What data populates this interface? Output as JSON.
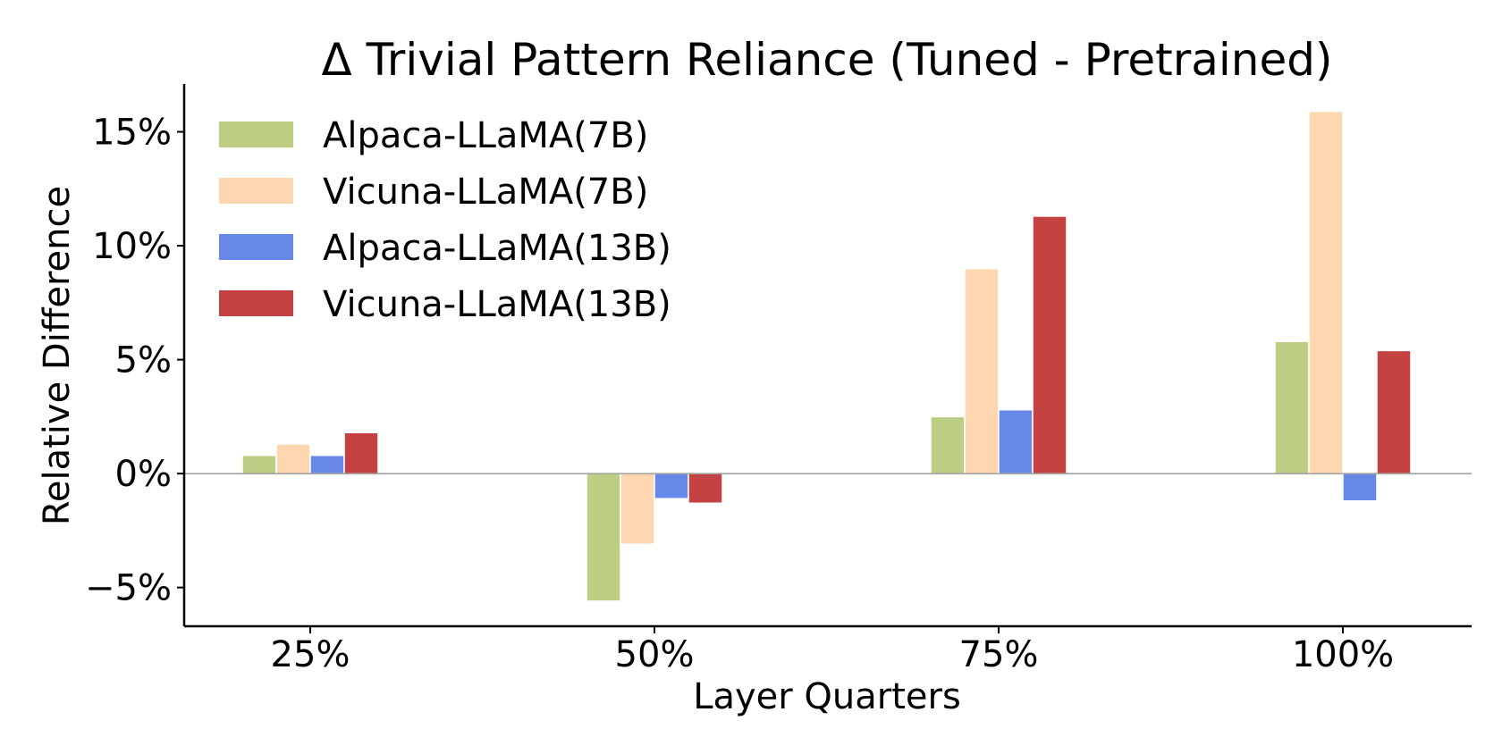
{
  "chart_data": {
    "type": "bar",
    "title": "Δ Trivial Pattern Reliance (Tuned - Pretrained)",
    "xlabel": "Layer Quarters",
    "ylabel": "Relative Difference",
    "categories": [
      "25%",
      "50%",
      "75%",
      "100%"
    ],
    "ylim": [
      -6.7,
      17.1
    ],
    "yticks": [
      -5,
      0,
      5,
      10,
      15
    ],
    "ytick_labels": [
      "−5%",
      "0%",
      "5%",
      "10%",
      "15%"
    ],
    "value_unit": "%",
    "grid": false,
    "legend_position": "top-left",
    "series": [
      {
        "name": "Alpaca-LLaMA(7B)",
        "color": "#bccd84",
        "values": [
          0.8,
          -5.6,
          2.5,
          5.8
        ]
      },
      {
        "name": "Vicuna-LLaMA(7B)",
        "color": "#fed7b0",
        "values": [
          1.3,
          -3.1,
          9.0,
          15.9
        ]
      },
      {
        "name": "Alpaca-LLaMA(13B)",
        "color": "#6888e8",
        "values": [
          0.8,
          -1.1,
          2.8,
          -1.2
        ]
      },
      {
        "name": "Vicuna-LLaMA(13B)",
        "color": "#c44242",
        "values": [
          1.8,
          -1.3,
          11.3,
          5.4
        ]
      }
    ]
  }
}
